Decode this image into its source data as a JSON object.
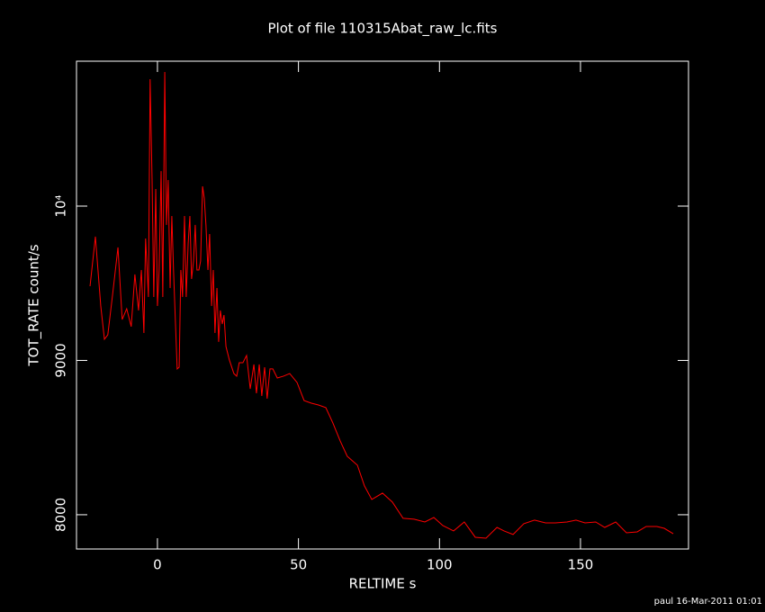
{
  "chart_data": {
    "type": "line",
    "title": "Plot of file 110315Abat_raw_lc.fits",
    "x_label": "RELTIME  s",
    "y_label": "TOT_RATE  count/s",
    "footer": "paul 16-Mar-2011 01:01",
    "xlim": [
      -28.7,
      188.3
    ],
    "ylim": [
      7778,
      10939
    ],
    "xticks": [
      0,
      50,
      100,
      150
    ],
    "yticks": [
      8000,
      9000,
      {
        "value": 10000,
        "label": "10⁴"
      }
    ],
    "series": [
      {
        "color": "#ff0000",
        "x": [
          -23.9,
          -22.0,
          -20.1,
          -18.8,
          -17.6,
          -16.0,
          -14.0,
          -12.5,
          -10.9,
          -9.3,
          -8.0,
          -6.7,
          -5.7,
          -4.8,
          -4.2,
          -3.2,
          -2.6,
          -1.9,
          -1.3,
          -0.6,
          0,
          0.6,
          1.3,
          1.9,
          2.6,
          3.2,
          3.8,
          4.5,
          5.1,
          5.7,
          6.4,
          7.0,
          7.7,
          8.3,
          8.9,
          9.6,
          10.2,
          10.9,
          11.5,
          12.1,
          12.8,
          13.4,
          14.0,
          14.7,
          15.3,
          16.0,
          16.6,
          17.2,
          17.9,
          18.5,
          19.2,
          19.8,
          20.4,
          21.1,
          21.7,
          22.3,
          23.0,
          23.6,
          24.3,
          25.5,
          27.1,
          28.1,
          29.0,
          30.3,
          31.6,
          32.9,
          34.2,
          35.1,
          36.1,
          37.0,
          38.0,
          38.9,
          39.9,
          40.9,
          42.5,
          44.7,
          46.9,
          49.5,
          52.0,
          54.6,
          57.1,
          59.7,
          62.2,
          64.8,
          67.3,
          70.9,
          73.4,
          76.0,
          79.8,
          83.3,
          87.1,
          91.0,
          94.8,
          98.0,
          101.2,
          105.0,
          108.8,
          112.7,
          116.5,
          120.4,
          122.9,
          126.1,
          129.9,
          133.7,
          137.6,
          141.1,
          145.2,
          148.4,
          151.6,
          155.4,
          158.6,
          162.5,
          166.3,
          170.1,
          173.3,
          177.1,
          179.7,
          182.9
        ],
        "values": [
          9481,
          9802,
          9353,
          9137,
          9166,
          9411,
          9732,
          9265,
          9335,
          9219,
          9557,
          9324,
          9586,
          9178,
          9790,
          9411,
          10822,
          10169,
          9411,
          10111,
          9353,
          9586,
          10227,
          9411,
          10869,
          9878,
          10169,
          9469,
          9936,
          9586,
          9236,
          8945,
          8956,
          9586,
          9411,
          9936,
          9411,
          9761,
          9936,
          9528,
          9644,
          9878,
          9586,
          9586,
          9644,
          10128,
          10052,
          9878,
          9586,
          9819,
          9353,
          9586,
          9178,
          9469,
          9120,
          9324,
          9236,
          9294,
          9090,
          9003,
          8915,
          8898,
          8985,
          8985,
          9032,
          8816,
          8974,
          8787,
          8974,
          8770,
          8956,
          8752,
          8945,
          8945,
          8886,
          8898,
          8915,
          8857,
          8740,
          8723,
          8711,
          8694,
          8595,
          8478,
          8379,
          8321,
          8187,
          8099,
          8140,
          8082,
          7977,
          7971,
          7953,
          7982,
          7930,
          7895,
          7953,
          7854,
          7848,
          7918,
          7895,
          7872,
          7942,
          7965,
          7947,
          7947,
          7953,
          7965,
          7947,
          7953,
          7918,
          7953,
          7883,
          7889,
          7924,
          7924,
          7912,
          7877
        ]
      }
    ]
  }
}
